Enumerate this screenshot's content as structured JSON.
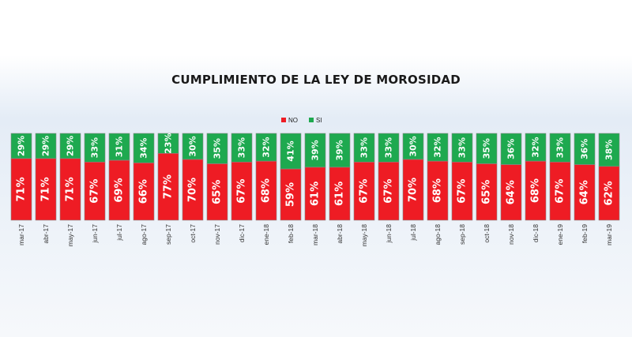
{
  "colors": {
    "no": "#ee1c24",
    "si": "#1ea94f",
    "bar_border": "#8a8a8a"
  },
  "chart_data": {
    "type": "bar",
    "stacked": true,
    "normalized_percent": true,
    "title": "CUMPLIMIENTO DE LA LEY DE MOROSIDAD",
    "legend": {
      "position": "top-center",
      "entries": [
        "NO",
        "SI"
      ]
    },
    "categories": [
      "mar-17",
      "abr-17",
      "may-17",
      "jun-17",
      "jul-17",
      "ago-17",
      "sep-17",
      "oct-17",
      "nov-17",
      "dic-17",
      "ene-18",
      "feb-18",
      "mar-18",
      "abr-18",
      "may-18",
      "jun-18",
      "jul-18",
      "ago-18",
      "sep-18",
      "oct-18",
      "nov-18",
      "dic-18",
      "ene-19",
      "feb-19",
      "mar-19"
    ],
    "series": [
      {
        "name": "NO",
        "values": [
          71,
          71,
          71,
          67,
          69,
          66,
          77,
          70,
          65,
          67,
          68,
          59,
          61,
          61,
          67,
          67,
          70,
          68,
          67,
          65,
          64,
          68,
          67,
          64,
          62
        ]
      },
      {
        "name": "SI",
        "values": [
          29,
          29,
          29,
          33,
          31,
          34,
          23,
          30,
          35,
          33,
          32,
          41,
          39,
          39,
          33,
          33,
          30,
          32,
          33,
          35,
          36,
          32,
          33,
          36,
          38
        ]
      }
    ],
    "ylim": [
      0,
      100
    ],
    "xlabel": "",
    "ylabel": ""
  }
}
